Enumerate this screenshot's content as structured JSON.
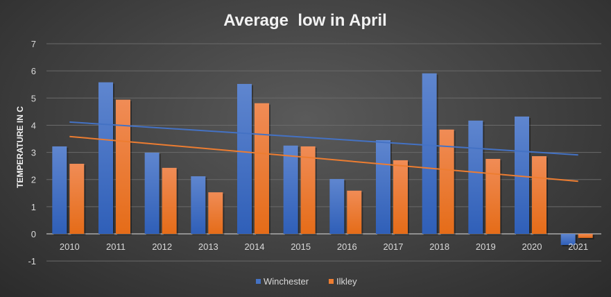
{
  "chart_data": {
    "type": "bar",
    "title": "Average  low in April",
    "xlabel": "",
    "ylabel": "TEMPERATURE IN C",
    "ylim": [
      -1,
      7
    ],
    "yticks": [
      "-1",
      "0",
      "1",
      "2",
      "3",
      "4",
      "5",
      "6",
      "7"
    ],
    "grid": true,
    "legend_position": "bottom",
    "categories": [
      "2010",
      "2011",
      "2012",
      "2013",
      "2014",
      "2015",
      "2016",
      "2017",
      "2018",
      "2019",
      "2020",
      "2021"
    ],
    "series": [
      {
        "name": "Winchester",
        "color": "#4472C4",
        "values": [
          3.22,
          5.58,
          2.99,
          2.12,
          5.52,
          3.25,
          2.02,
          3.45,
          5.91,
          4.17,
          4.32,
          -0.41
        ],
        "trendline": "linear"
      },
      {
        "name": "Ilkley",
        "color": "#ED7D31",
        "values": [
          2.58,
          4.94,
          2.43,
          1.53,
          4.81,
          3.22,
          1.59,
          2.71,
          3.84,
          2.76,
          2.86,
          -0.15
        ],
        "trendline": "linear"
      }
    ]
  }
}
